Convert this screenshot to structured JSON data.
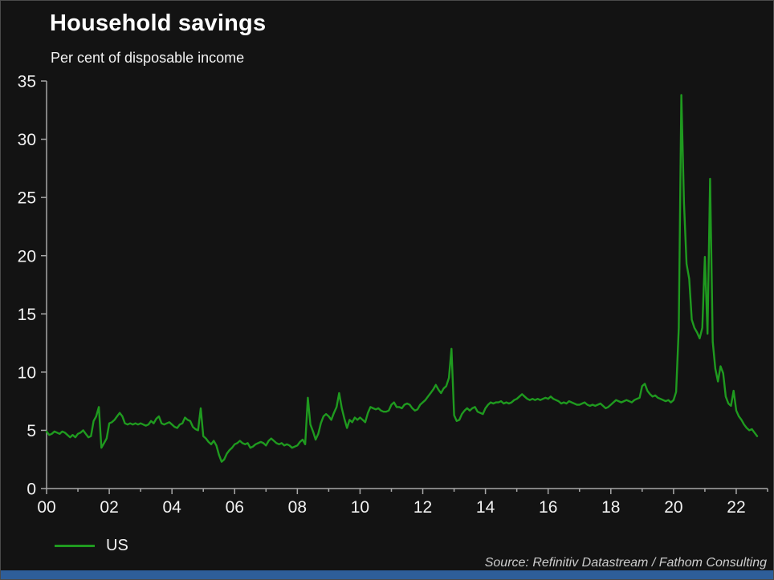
{
  "header": {
    "title": "Household savings",
    "subtitle": "Per cent of disposable income"
  },
  "legend": {
    "label": "US"
  },
  "source": "Source: Refinitiv Datastream / Fathom Consulting",
  "colors": {
    "background": "#131313",
    "line": "#1f9a1f",
    "text": "#f2f2f2",
    "axis": "#a8a8a8",
    "footer_bar": "#2e5e99",
    "source_text": "#cccccc"
  },
  "chart_data": {
    "type": "line",
    "title": "Household savings",
    "subtitle": "Per cent of disposable income",
    "xlabel": "",
    "ylabel": "Per cent of disposable income",
    "x_range": [
      2000,
      2023
    ],
    "ylim": [
      0,
      35
    ],
    "y_ticks": [
      0,
      5,
      10,
      15,
      20,
      25,
      30,
      35
    ],
    "x_tick_years": [
      2000,
      2002,
      2004,
      2006,
      2008,
      2010,
      2012,
      2014,
      2016,
      2018,
      2020,
      2022
    ],
    "x_tick_labels": [
      "00",
      "02",
      "04",
      "06",
      "08",
      "10",
      "12",
      "14",
      "16",
      "18",
      "20",
      "22"
    ],
    "grid": false,
    "legend_position": "bottom-left",
    "series": [
      {
        "name": "US",
        "color": "#1f9a1f",
        "frequency": "monthly",
        "start_year": 2000,
        "values": [
          4.9,
          4.6,
          4.7,
          4.9,
          4.8,
          4.7,
          4.9,
          4.8,
          4.6,
          4.4,
          4.6,
          4.4,
          4.7,
          4.8,
          5.0,
          4.7,
          4.4,
          4.5,
          5.8,
          6.2,
          7.0,
          3.5,
          3.9,
          4.3,
          5.6,
          5.7,
          5.9,
          6.2,
          6.5,
          6.2,
          5.6,
          5.5,
          5.6,
          5.5,
          5.6,
          5.5,
          5.6,
          5.5,
          5.4,
          5.5,
          5.8,
          5.6,
          6.0,
          6.2,
          5.6,
          5.5,
          5.6,
          5.7,
          5.5,
          5.3,
          5.2,
          5.5,
          5.6,
          6.1,
          5.9,
          5.8,
          5.3,
          5.1,
          5.0,
          6.9,
          4.5,
          4.3,
          4.0,
          3.8,
          4.1,
          3.7,
          2.9,
          2.3,
          2.5,
          3.0,
          3.3,
          3.5,
          3.8,
          3.9,
          4.1,
          3.9,
          3.8,
          3.9,
          3.5,
          3.6,
          3.8,
          3.9,
          4.0,
          3.9,
          3.7,
          4.1,
          4.3,
          4.1,
          3.9,
          3.8,
          3.9,
          3.7,
          3.8,
          3.7,
          3.5,
          3.6,
          3.7,
          4.0,
          4.2,
          3.8,
          7.8,
          5.5,
          4.9,
          4.2,
          4.7,
          5.6,
          6.2,
          6.4,
          6.2,
          5.9,
          6.5,
          7.0,
          8.2,
          6.9,
          6.0,
          5.2,
          5.9,
          5.7,
          6.1,
          5.9,
          6.1,
          5.9,
          5.7,
          6.5,
          7.0,
          6.9,
          6.8,
          6.9,
          6.7,
          6.6,
          6.6,
          6.7,
          7.2,
          7.4,
          7.0,
          7.0,
          6.9,
          7.2,
          7.3,
          7.2,
          6.9,
          6.7,
          6.8,
          7.2,
          7.4,
          7.6,
          7.9,
          8.2,
          8.5,
          8.9,
          8.5,
          8.2,
          8.6,
          8.8,
          9.5,
          12.0,
          6.3,
          5.8,
          5.9,
          6.4,
          6.7,
          6.9,
          6.7,
          6.9,
          7.0,
          6.6,
          6.5,
          6.4,
          6.9,
          7.2,
          7.4,
          7.3,
          7.4,
          7.4,
          7.5,
          7.3,
          7.4,
          7.3,
          7.4,
          7.6,
          7.7,
          7.9,
          8.1,
          7.9,
          7.7,
          7.6,
          7.7,
          7.6,
          7.7,
          7.6,
          7.7,
          7.8,
          7.7,
          7.9,
          7.7,
          7.6,
          7.5,
          7.3,
          7.4,
          7.3,
          7.5,
          7.4,
          7.3,
          7.2,
          7.2,
          7.3,
          7.4,
          7.2,
          7.1,
          7.2,
          7.1,
          7.2,
          7.3,
          7.1,
          6.9,
          7.0,
          7.2,
          7.4,
          7.6,
          7.5,
          7.4,
          7.5,
          7.6,
          7.5,
          7.4,
          7.6,
          7.7,
          7.8,
          8.8,
          9.0,
          8.4,
          8.1,
          7.9,
          8.0,
          7.8,
          7.7,
          7.6,
          7.5,
          7.6,
          7.4,
          7.6,
          8.3,
          13.8,
          33.8,
          24.5,
          19.3,
          18.0,
          14.5,
          13.8,
          13.4,
          12.9,
          13.8,
          19.9,
          13.3,
          26.6,
          12.6,
          10.3,
          9.2,
          10.5,
          9.9,
          7.9,
          7.3,
          7.1,
          8.4,
          6.7,
          6.2,
          5.9,
          5.5,
          5.2,
          5.0,
          5.1,
          4.8,
          4.5
        ]
      }
    ]
  }
}
